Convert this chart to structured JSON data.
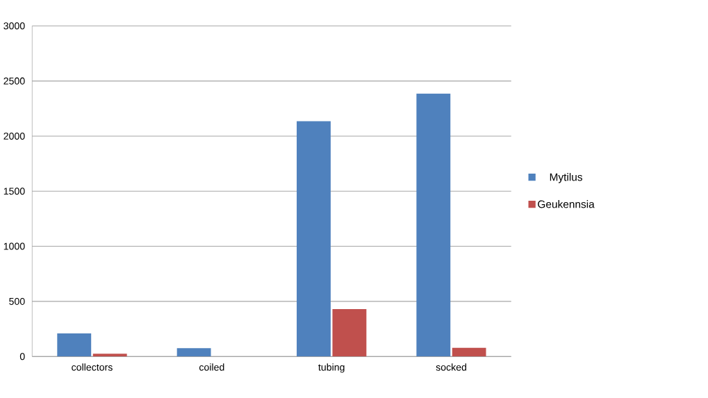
{
  "chart_data": {
    "type": "bar",
    "categories": [
      "collectors",
      "coiled",
      "tubing",
      "socked"
    ],
    "series": [
      {
        "name": "Mytilus",
        "color": "#4f81bd",
        "values": [
          210,
          75,
          2135,
          2385
        ]
      },
      {
        "name": "Geukennsia",
        "color": "#c0504d",
        "values": [
          25,
          null,
          430,
          78
        ]
      }
    ],
    "ylim": [
      0,
      3000
    ],
    "yticks": [
      0,
      500,
      1000,
      1500,
      2000,
      2500,
      3000
    ],
    "grid": "y",
    "legend": "right"
  }
}
